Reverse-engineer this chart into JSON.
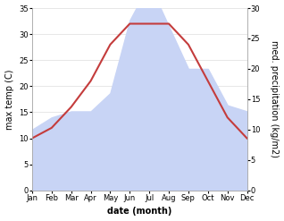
{
  "months": [
    "Jan",
    "Feb",
    "Mar",
    "Apr",
    "May",
    "Jun",
    "Jul",
    "Aug",
    "Sep",
    "Oct",
    "Nov",
    "Dec"
  ],
  "temperature": [
    10,
    12,
    16,
    21,
    28,
    32,
    32,
    32,
    28,
    21,
    14,
    10
  ],
  "precipitation": [
    10,
    12,
    13,
    13,
    16,
    28,
    34,
    27,
    20,
    20,
    14,
    13
  ],
  "temp_color": "#c43c3c",
  "precip_color_fill": "#c8d4f5",
  "left_label": "max temp (C)",
  "right_label": "med. precipitation (kg/m2)",
  "xlabel": "date (month)",
  "ylim_left": [
    0,
    35
  ],
  "ylim_right": [
    0,
    30
  ],
  "left_ticks": [
    0,
    5,
    10,
    15,
    20,
    25,
    30,
    35
  ],
  "right_ticks": [
    0,
    5,
    10,
    15,
    20,
    25,
    30
  ],
  "background": "#ffffff",
  "spine_color": "#aaaaaa",
  "tick_fontsize": 6,
  "label_fontsize": 7,
  "xlabel_fontsize": 7
}
